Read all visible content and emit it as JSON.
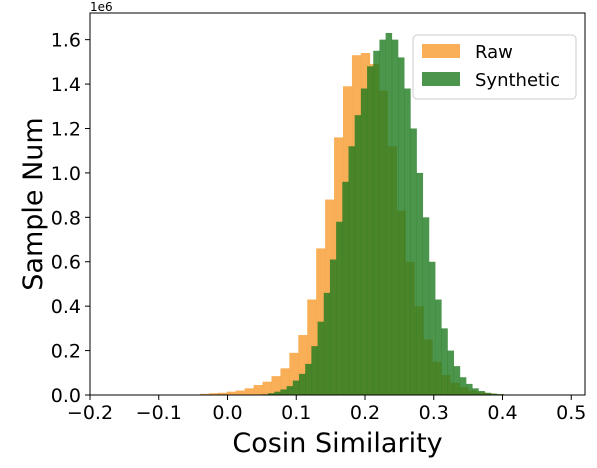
{
  "chart_data": {
    "type": "bar",
    "xlabel": "Cosin Similarity",
    "ylabel": "Sample Num",
    "y_offset_label": "1e6",
    "xlim": [
      -0.2,
      0.52
    ],
    "ylim": [
      0,
      1.72
    ],
    "x_ticks": [
      -0.2,
      -0.1,
      0.0,
      0.1,
      0.2,
      0.3,
      0.4,
      0.5
    ],
    "x_tick_labels": [
      "−0.2",
      "−0.1",
      "0.0",
      "0.1",
      "0.2",
      "0.3",
      "0.4",
      "0.5"
    ],
    "y_ticks": [
      0,
      0.2,
      0.4,
      0.6,
      0.8,
      1.0,
      1.2,
      1.4,
      1.6
    ],
    "y_tick_labels": [
      "0.0",
      "0.2",
      "0.4",
      "0.6",
      "0.8",
      "1.0",
      "1.2",
      "1.4",
      "1.6"
    ],
    "y_unit_multiplier": 1000000,
    "legend_position": "upper right",
    "grid": false,
    "series": [
      {
        "name": "Raw",
        "color": "#f7a13b",
        "bin_start": -0.04,
        "bin_width": 0.013,
        "values": [
          0.005,
          0.008,
          0.01,
          0.015,
          0.02,
          0.03,
          0.045,
          0.06,
          0.085,
          0.12,
          0.19,
          0.27,
          0.43,
          0.66,
          0.88,
          1.16,
          1.39,
          1.53,
          1.54,
          1.49,
          1.37,
          1.12,
          0.83,
          0.6,
          0.4,
          0.25,
          0.15,
          0.09,
          0.055,
          0.035,
          0.02,
          0.012,
          0.007,
          0.004,
          0.002
        ]
      },
      {
        "name": "Synthetic",
        "color": "#1f7a1f",
        "bin_start": 0.05,
        "bin_width": 0.009,
        "values": [
          0.003,
          0.008,
          0.015,
          0.025,
          0.04,
          0.065,
          0.095,
          0.14,
          0.22,
          0.33,
          0.46,
          0.61,
          0.78,
          0.96,
          1.12,
          1.26,
          1.38,
          1.48,
          1.55,
          1.6,
          1.63,
          1.6,
          1.52,
          1.38,
          1.2,
          1.0,
          0.8,
          0.6,
          0.43,
          0.3,
          0.2,
          0.13,
          0.08,
          0.05,
          0.03,
          0.018,
          0.01,
          0.006,
          0.004,
          0.002
        ]
      }
    ]
  }
}
